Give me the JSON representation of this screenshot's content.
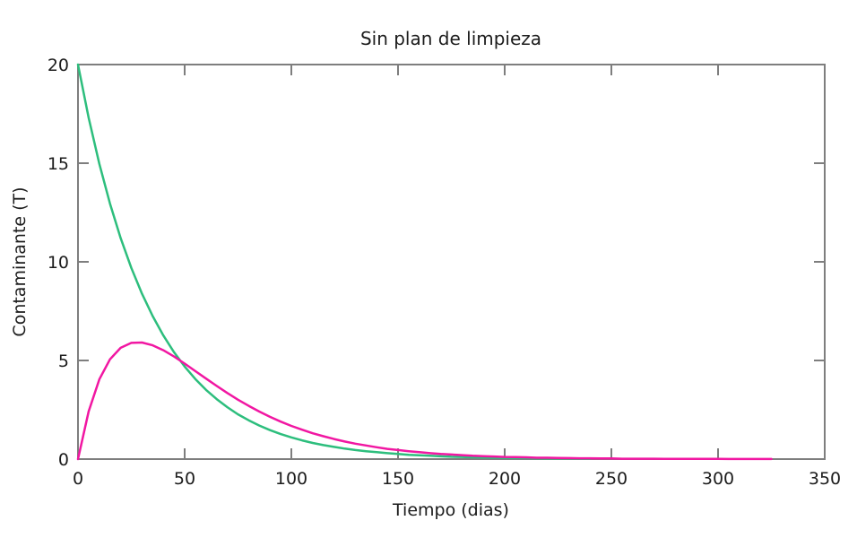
{
  "chart_data": {
    "type": "line",
    "title": "Sin plan de limpieza",
    "xlabel": "Tiempo (dias)",
    "ylabel": "Contaminante (T)",
    "xlim": [
      0,
      350
    ],
    "ylim": [
      0,
      20
    ],
    "xticks": [
      0,
      50,
      100,
      150,
      200,
      250,
      300,
      350
    ],
    "yticks": [
      0,
      5,
      10,
      15,
      20
    ],
    "grid": false,
    "legend": "none",
    "background_color": "#ffffff",
    "axis_color": "#7e7e7e",
    "text_color": "#1c1c1c",
    "series": [
      {
        "name": "green-curve",
        "color": "#2dbe7d",
        "x": [
          0,
          5,
          10,
          15,
          20,
          25,
          30,
          35,
          40,
          45,
          50,
          55,
          60,
          65,
          70,
          75,
          80,
          85,
          90,
          95,
          100,
          105,
          110,
          115,
          120,
          125,
          130,
          135,
          140,
          145,
          150,
          155,
          160,
          165,
          170,
          175,
          180,
          185,
          190,
          195,
          200,
          205,
          210,
          215,
          220,
          225,
          230,
          235,
          240
        ],
        "y": [
          20,
          17.3,
          14.97,
          12.95,
          11.2,
          9.69,
          8.38,
          7.25,
          6.27,
          5.42,
          4.69,
          4.06,
          3.51,
          3.04,
          2.63,
          2.27,
          1.97,
          1.7,
          1.47,
          1.27,
          1.1,
          0.95,
          0.82,
          0.71,
          0.62,
          0.53,
          0.46,
          0.4,
          0.35,
          0.3,
          0.26,
          0.22,
          0.19,
          0.17,
          0.14,
          0.12,
          0.11,
          0.09,
          0.08,
          0.07,
          0.06,
          0.05,
          0.05,
          0.04,
          0.03,
          0.03,
          0.03,
          0.02,
          0.02
        ]
      },
      {
        "name": "magenta-curve",
        "color": "#f117a2",
        "x": [
          0,
          5,
          10,
          15,
          20,
          25,
          30,
          35,
          40,
          45,
          50,
          55,
          60,
          65,
          70,
          75,
          80,
          85,
          90,
          95,
          100,
          105,
          110,
          115,
          120,
          125,
          130,
          135,
          140,
          145,
          150,
          155,
          160,
          165,
          170,
          175,
          180,
          185,
          190,
          195,
          200,
          205,
          210,
          215,
          220,
          225,
          230,
          235,
          240,
          245,
          250,
          255,
          260,
          265,
          270,
          275,
          280,
          285,
          290,
          295,
          300,
          305,
          310,
          315,
          320,
          325
        ],
        "y": [
          0,
          2.42,
          4.04,
          5.06,
          5.64,
          5.89,
          5.91,
          5.77,
          5.52,
          5.2,
          4.84,
          4.46,
          4.08,
          3.71,
          3.35,
          3.01,
          2.7,
          2.41,
          2.14,
          1.9,
          1.68,
          1.49,
          1.31,
          1.16,
          1.02,
          0.89,
          0.78,
          0.69,
          0.6,
          0.52,
          0.46,
          0.4,
          0.35,
          0.3,
          0.26,
          0.23,
          0.2,
          0.17,
          0.15,
          0.13,
          0.11,
          0.1,
          0.09,
          0.07,
          0.07,
          0.06,
          0.05,
          0.04,
          0.04,
          0.03,
          0.03,
          0.02,
          0.02,
          0.02,
          0.02,
          0.013,
          0.012,
          0.01,
          0.009,
          0.008,
          0.007,
          0.006,
          0.005,
          0.004,
          0.004,
          0.003
        ]
      }
    ]
  }
}
